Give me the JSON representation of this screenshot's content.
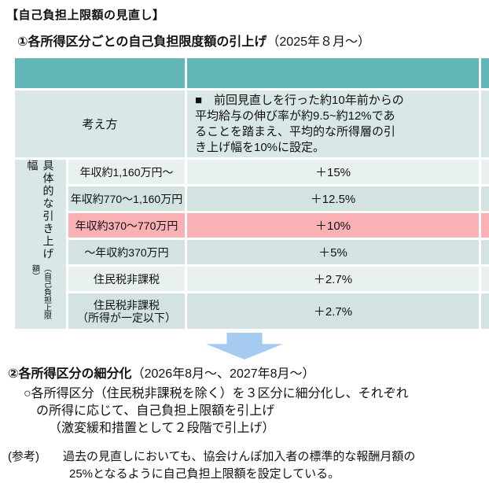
{
  "page": {
    "title": "【自己負担上限額の見直し】"
  },
  "section1": {
    "heading": "①各所得区分ごとの自己負担限度額の引上げ",
    "heading_note": "（2025年８月～）"
  },
  "table": {
    "side_header": {
      "main": "具体的な引き上げ幅",
      "sub": "（自己負担上限額）"
    },
    "approach": {
      "label": "考え方",
      "lines": [
        "■　前回見直しを行った約10年前からの",
        "平均給与の伸び率が約9.5~約12%であ",
        "ることを踏まえ、平均的な所得層の引",
        "き上げ幅を10%に設定。"
      ]
    },
    "rows": [
      {
        "income": "年収約1,160万円～",
        "rate": "＋15%",
        "shade": "light"
      },
      {
        "income": "年収約770～1,160万円",
        "rate": "＋12.5%",
        "shade": "dark"
      },
      {
        "income": "年収約370～770万円",
        "rate": "＋10%",
        "shade": "pink"
      },
      {
        "income": "～年収約370万円",
        "rate": "＋5%",
        "shade": "dark"
      },
      {
        "income": "住民税非課税",
        "rate": "＋2.7%",
        "shade": "light"
      },
      {
        "income": "住民税非課税",
        "income2": "（所得が一定以下）",
        "rate": "＋2.7%",
        "shade": "dark"
      }
    ]
  },
  "section2": {
    "heading": "②各所得区分の細分化",
    "heading_note": "（2026年8月～、2027年8月～）",
    "lines": [
      "○各所得区分（住民税非課税を除く）を３区分に細分化し、それぞれ",
      "の所得に応じて、自己負担上限額を引上げ",
      "（激変緩和措置として２段階で引上げ）"
    ]
  },
  "reference": {
    "lines": [
      "(参考)　　過去の見直しにおいても、協会けんぽ加入者の標準的な報酬月額の",
      "25%となるように自己負担上限額を設定している。"
    ]
  },
  "colors": {
    "header_teal": "#62b6b6",
    "row_mid": "#d9e8e7",
    "row_light": "#e8f1f0",
    "row_dark": "#d2e3e2",
    "highlight_pink": "#f9b1b6",
    "arrow_blue": "#a6cbf1"
  }
}
